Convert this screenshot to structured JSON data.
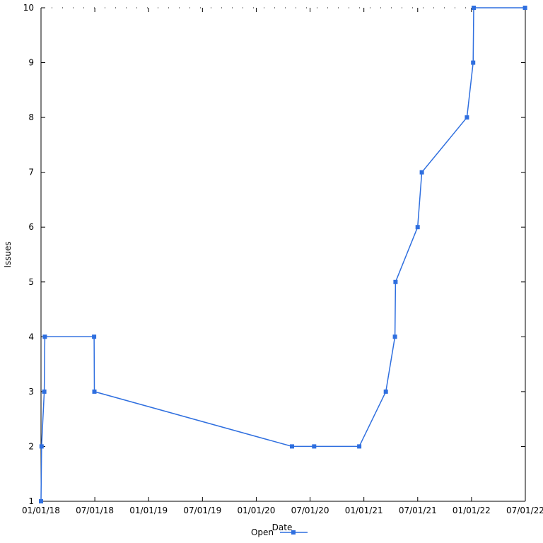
{
  "chart_data": {
    "type": "line",
    "title": "",
    "xlabel": "Date",
    "ylabel": "Issues",
    "x_ticks": [
      "01/01/18",
      "07/01/18",
      "01/01/19",
      "07/01/19",
      "01/01/20",
      "07/01/20",
      "01/01/21",
      "07/01/21",
      "01/01/22",
      "07/01/22"
    ],
    "y_ticks": [
      "1",
      "2",
      "3",
      "4",
      "5",
      "6",
      "7",
      "8",
      "9",
      "10"
    ],
    "xlim": [
      "2018-01-01",
      "2022-07-01"
    ],
    "ylim": [
      1,
      10
    ],
    "legend": "bottom-center",
    "series": [
      {
        "name": "Open",
        "color": "#2f6fdf",
        "marker": "square",
        "points": [
          {
            "x": "2018-01-01",
            "y": 1
          },
          {
            "x": "2018-01-03",
            "y": 2
          },
          {
            "x": "2018-01-12",
            "y": 3
          },
          {
            "x": "2018-01-14",
            "y": 4
          },
          {
            "x": "2018-06-30",
            "y": 4
          },
          {
            "x": "2018-07-01",
            "y": 3
          },
          {
            "x": "2020-05-01",
            "y": 2
          },
          {
            "x": "2020-07-15",
            "y": 2
          },
          {
            "x": "2020-12-15",
            "y": 2
          },
          {
            "x": "2021-03-15",
            "y": 3
          },
          {
            "x": "2021-04-15",
            "y": 4
          },
          {
            "x": "2021-04-17",
            "y": 5
          },
          {
            "x": "2021-07-01",
            "y": 6
          },
          {
            "x": "2021-07-15",
            "y": 7
          },
          {
            "x": "2021-12-15",
            "y": 8
          },
          {
            "x": "2022-01-05",
            "y": 9
          },
          {
            "x": "2022-01-07",
            "y": 10
          },
          {
            "x": "2022-06-30",
            "y": 10
          }
        ]
      }
    ]
  }
}
